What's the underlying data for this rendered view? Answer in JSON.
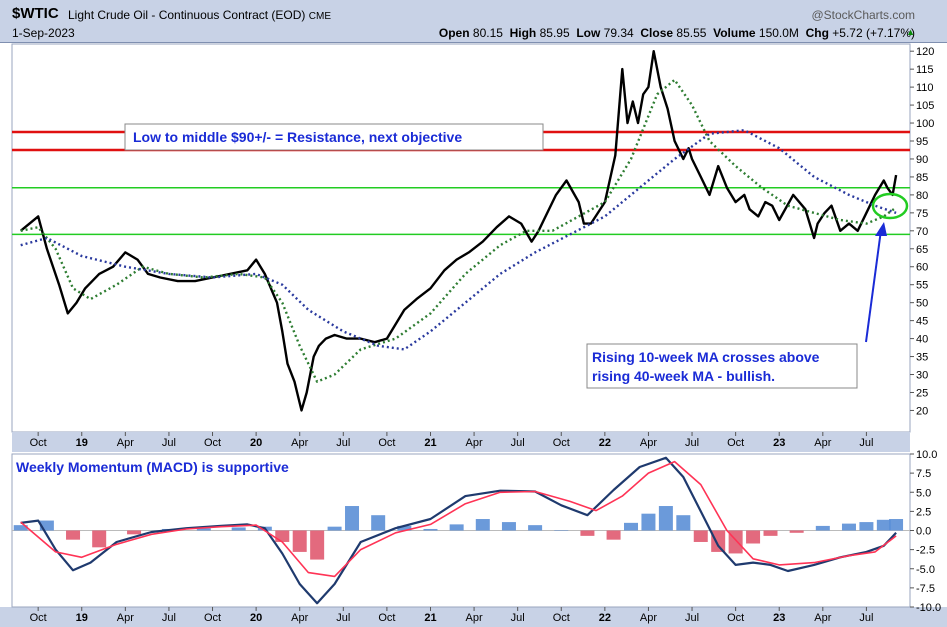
{
  "header": {
    "symbol": "$WTIC",
    "name": "Light Crude Oil - Continuous Contract (EOD)",
    "exchange": "CME",
    "brand": "@StockCharts.com",
    "date": "1-Sep-2023",
    "open_label": "Open",
    "open": "80.15",
    "high_label": "High",
    "high": "85.95",
    "low_label": "Low",
    "low": "79.34",
    "close_label": "Close",
    "close": "85.55",
    "volume_label": "Volume",
    "volume": "150.0M",
    "chg_label": "Chg",
    "chg": "+5.72 (+7.17%)"
  },
  "colors": {
    "price": "#000000",
    "ma10": "#2e7d32",
    "ma40": "#2a3a9e",
    "resistance": "#e01010",
    "support": "#22cc22",
    "macd_line": "#1f3a6e",
    "signal_line": "#ff3355",
    "hist_pos": "#5b8fd6",
    "hist_neg": "#e05a70",
    "annotation_text": "#1a2bd6",
    "ellipse": "#22cc22",
    "arrow": "#1a2bd6"
  },
  "annotations": {
    "resistance_note": "Low to middle $90+/- = Resistance, next objective",
    "ma_cross_note_1": "Rising 10-week MA crosses above",
    "ma_cross_note_2": "rising 40-week MA - bullish.",
    "macd_title": "Weekly Momentum (MACD) is supportive"
  },
  "chart_data": [
    {
      "type": "line",
      "title": "$WTIC Light Crude Oil - Continuous Contract (EOD) CME",
      "x_tick_labels": [
        "Oct",
        "19",
        "Apr",
        "Jul",
        "Oct",
        "20",
        "Apr",
        "Jul",
        "Oct",
        "21",
        "Apr",
        "Jul",
        "Oct",
        "22",
        "Apr",
        "Jul",
        "Oct",
        "23",
        "Apr",
        "Jul"
      ],
      "xlim": [
        "2018-09",
        "2023-09"
      ],
      "y_tick_labels": [
        "20",
        "25",
        "30",
        "35",
        "40",
        "45",
        "50",
        "55",
        "60",
        "65",
        "70",
        "75",
        "80",
        "85",
        "90",
        "95",
        "100",
        "105",
        "110",
        "115",
        "120"
      ],
      "ylim": [
        14,
        122
      ],
      "horizontal_lines": [
        {
          "name": "resistance_upper",
          "value": 97.5,
          "color": "#e01010"
        },
        {
          "name": "resistance_lower",
          "value": 92.5,
          "color": "#e01010"
        },
        {
          "name": "support_upper",
          "value": 82,
          "color": "#22cc22"
        },
        {
          "name": "support_lower",
          "value": 69,
          "color": "#22cc22"
        }
      ],
      "series": [
        {
          "name": "",
          "style": "solid",
          "x": [
            2018.65,
            2018.75,
            2018.8,
            2018.87,
            2018.92,
            2018.97,
            2019.02,
            2019.1,
            2019.18,
            2019.25,
            2019.32,
            2019.38,
            2019.45,
            2019.55,
            2019.65,
            2019.75,
            2019.85,
            2019.95,
            2020.0,
            2020.05,
            2020.12,
            2020.15,
            2020.18,
            2020.22,
            2020.24,
            2020.26,
            2020.29,
            2020.31,
            2020.33,
            2020.36,
            2020.4,
            2020.45,
            2020.52,
            2020.6,
            2020.68,
            2020.75,
            2020.8,
            2020.85,
            2020.92,
            2021.0,
            2021.08,
            2021.15,
            2021.22,
            2021.3,
            2021.38,
            2021.45,
            2021.52,
            2021.58,
            2021.62,
            2021.65,
            2021.72,
            2021.78,
            2021.85,
            2021.88,
            2021.92,
            2022.0,
            2022.06,
            2022.1,
            2022.13,
            2022.16,
            2022.19,
            2022.22,
            2022.25,
            2022.28,
            2022.32,
            2022.36,
            2022.4,
            2022.45,
            2022.48,
            2022.5,
            2022.55,
            2022.6,
            2022.65,
            2022.7,
            2022.75,
            2022.8,
            2022.83,
            2022.88,
            2022.92,
            2022.96,
            2023.0,
            2023.08,
            2023.15,
            2023.2,
            2023.22,
            2023.26,
            2023.3,
            2023.35,
            2023.4,
            2023.45,
            2023.52,
            2023.55,
            2023.6,
            2023.62,
            2023.65,
            2023.67
          ],
          "y": [
            70,
            74,
            65,
            55,
            47,
            50,
            54,
            58,
            60,
            64,
            62,
            58,
            57,
            56,
            56,
            57,
            58,
            59,
            62,
            58,
            50,
            42,
            33,
            28,
            24,
            20,
            25,
            30,
            35,
            38,
            40,
            41,
            40,
            40,
            39,
            40,
            44,
            48,
            51,
            54,
            59,
            62,
            64,
            67,
            71,
            74,
            72,
            67,
            70,
            73,
            80,
            84,
            78,
            72,
            72,
            78,
            91,
            115,
            100,
            106,
            100,
            108,
            110,
            120,
            110,
            104,
            95,
            90,
            93,
            90,
            85,
            80,
            88,
            82,
            78,
            80,
            76,
            74,
            78,
            77,
            73,
            80,
            76,
            68,
            72,
            75,
            77,
            70,
            72,
            70,
            77,
            80,
            84,
            82,
            80,
            85.5
          ]
        },
        {
          "name": "",
          "style": "dotted",
          "x": [
            2018.65,
            2018.75,
            2018.85,
            2018.95,
            2019.05,
            2019.2,
            2019.35,
            2019.5,
            2019.7,
            2019.9,
            2020.05,
            2020.15,
            2020.25,
            2020.35,
            2020.45,
            2020.6,
            2020.8,
            2021.0,
            2021.2,
            2021.4,
            2021.55,
            2021.7,
            2021.85,
            2022.0,
            2022.15,
            2022.3,
            2022.4,
            2022.5,
            2022.6,
            2022.75,
            2022.9,
            2023.05,
            2023.2,
            2023.35,
            2023.5,
            2023.6,
            2023.67
          ],
          "y": [
            70,
            71,
            65,
            54,
            51,
            55,
            60,
            58,
            57,
            58,
            57,
            50,
            38,
            28,
            30,
            37,
            40,
            47,
            58,
            66,
            70,
            70,
            74,
            78,
            90,
            108,
            112,
            105,
            95,
            88,
            82,
            77,
            75,
            73,
            72,
            74,
            76.5
          ]
        },
        {
          "name": "",
          "style": "dotted",
          "x": [
            2018.65,
            2018.8,
            2019.0,
            2019.25,
            2019.5,
            2019.75,
            2020.0,
            2020.15,
            2020.3,
            2020.5,
            2020.7,
            2020.85,
            2021.0,
            2021.2,
            2021.4,
            2021.6,
            2021.8,
            2022.0,
            2022.2,
            2022.4,
            2022.6,
            2022.8,
            2023.0,
            2023.2,
            2023.4,
            2023.55,
            2023.67
          ],
          "y": [
            66,
            68,
            63,
            60,
            58,
            57,
            58,
            55,
            48,
            42,
            38,
            37,
            42,
            50,
            58,
            64,
            69,
            74,
            82,
            90,
            97,
            98,
            93,
            85,
            80,
            77,
            75
          ]
        }
      ]
    },
    {
      "type": "line",
      "title": "Weekly Momentum (MACD) is supportive",
      "y_tick_labels": [
        "-10.0",
        "-7.5",
        "-5.0",
        "-2.5",
        "0.0",
        "2.5",
        "5.0",
        "7.5",
        "10.0"
      ],
      "ylim": [
        -10,
        10
      ],
      "series": [
        {
          "name": "",
          "style": "solid",
          "x": [
            2018.65,
            2018.75,
            2018.85,
            2018.95,
            2019.05,
            2019.2,
            2019.4,
            2019.6,
            2019.8,
            2019.95,
            2020.05,
            2020.15,
            2020.25,
            2020.35,
            2020.45,
            2020.6,
            2020.8,
            2021.0,
            2021.2,
            2021.4,
            2021.6,
            2021.75,
            2021.9,
            2022.05,
            2022.2,
            2022.35,
            2022.45,
            2022.55,
            2022.65,
            2022.75,
            2022.85,
            2022.95,
            2023.05,
            2023.2,
            2023.35,
            2023.5,
            2023.6,
            2023.67
          ],
          "y": [
            1,
            1.3,
            -2.5,
            -5.2,
            -4.2,
            -1.5,
            -0.2,
            0.3,
            0.6,
            0.8,
            0.3,
            -3,
            -7,
            -9.5,
            -7,
            -1.5,
            0.3,
            1.5,
            4.5,
            5.2,
            5.1,
            3.3,
            2,
            5.3,
            8.3,
            9.5,
            7,
            2.5,
            -2,
            -4.5,
            -4.2,
            -4.5,
            -5.3,
            -4.5,
            -3.5,
            -2.8,
            -2,
            -0.3
          ]
        },
        {
          "name": "",
          "style": "solid",
          "x": [
            2018.65,
            2018.85,
            2019.0,
            2019.2,
            2019.4,
            2019.6,
            2019.8,
            2020.0,
            2020.15,
            2020.3,
            2020.45,
            2020.6,
            2020.8,
            2021.0,
            2021.2,
            2021.4,
            2021.6,
            2021.8,
            2021.95,
            2022.1,
            2022.25,
            2022.4,
            2022.55,
            2022.7,
            2022.85,
            2023.0,
            2023.2,
            2023.4,
            2023.55,
            2023.67
          ],
          "y": [
            1.1,
            -2.8,
            -3.5,
            -1.8,
            -0.5,
            0.2,
            0.5,
            0.7,
            -1.5,
            -5.5,
            -6,
            -2.5,
            -0.3,
            0.8,
            3.5,
            5,
            5.1,
            3.8,
            2.6,
            4.5,
            7.5,
            9,
            6,
            0,
            -3.7,
            -4.5,
            -4.2,
            -3.3,
            -2.8,
            -0.7
          ]
        },
        {
          "name": "",
          "style": "histogram",
          "x": [
            2018.65,
            2018.8,
            2018.95,
            2019.1,
            2019.3,
            2019.5,
            2019.7,
            2019.9,
            2020.05,
            2020.15,
            2020.25,
            2020.35,
            2020.45,
            2020.55,
            2020.7,
            2020.85,
            2021.0,
            2021.15,
            2021.3,
            2021.45,
            2021.6,
            2021.75,
            2021.9,
            2022.05,
            2022.15,
            2022.25,
            2022.35,
            2022.45,
            2022.55,
            2022.65,
            2022.75,
            2022.85,
            2022.95,
            2023.1,
            2023.25,
            2023.4,
            2023.5,
            2023.6,
            2023.67
          ],
          "y": [
            0.7,
            1.3,
            -1.2,
            -2.2,
            -0.5,
            0.2,
            0.3,
            0.4,
            0.5,
            -1.5,
            -2.8,
            -3.8,
            0.5,
            3.2,
            2.0,
            0.6,
            0.2,
            0.8,
            1.5,
            1.1,
            0.7,
            0,
            -0.7,
            -1.2,
            1.0,
            2.2,
            3.2,
            2.0,
            -1.5,
            -2.8,
            -3.0,
            -1.7,
            -0.7,
            -0.3,
            0.6,
            0.9,
            1.1,
            1.4,
            1.5
          ]
        }
      ]
    }
  ]
}
